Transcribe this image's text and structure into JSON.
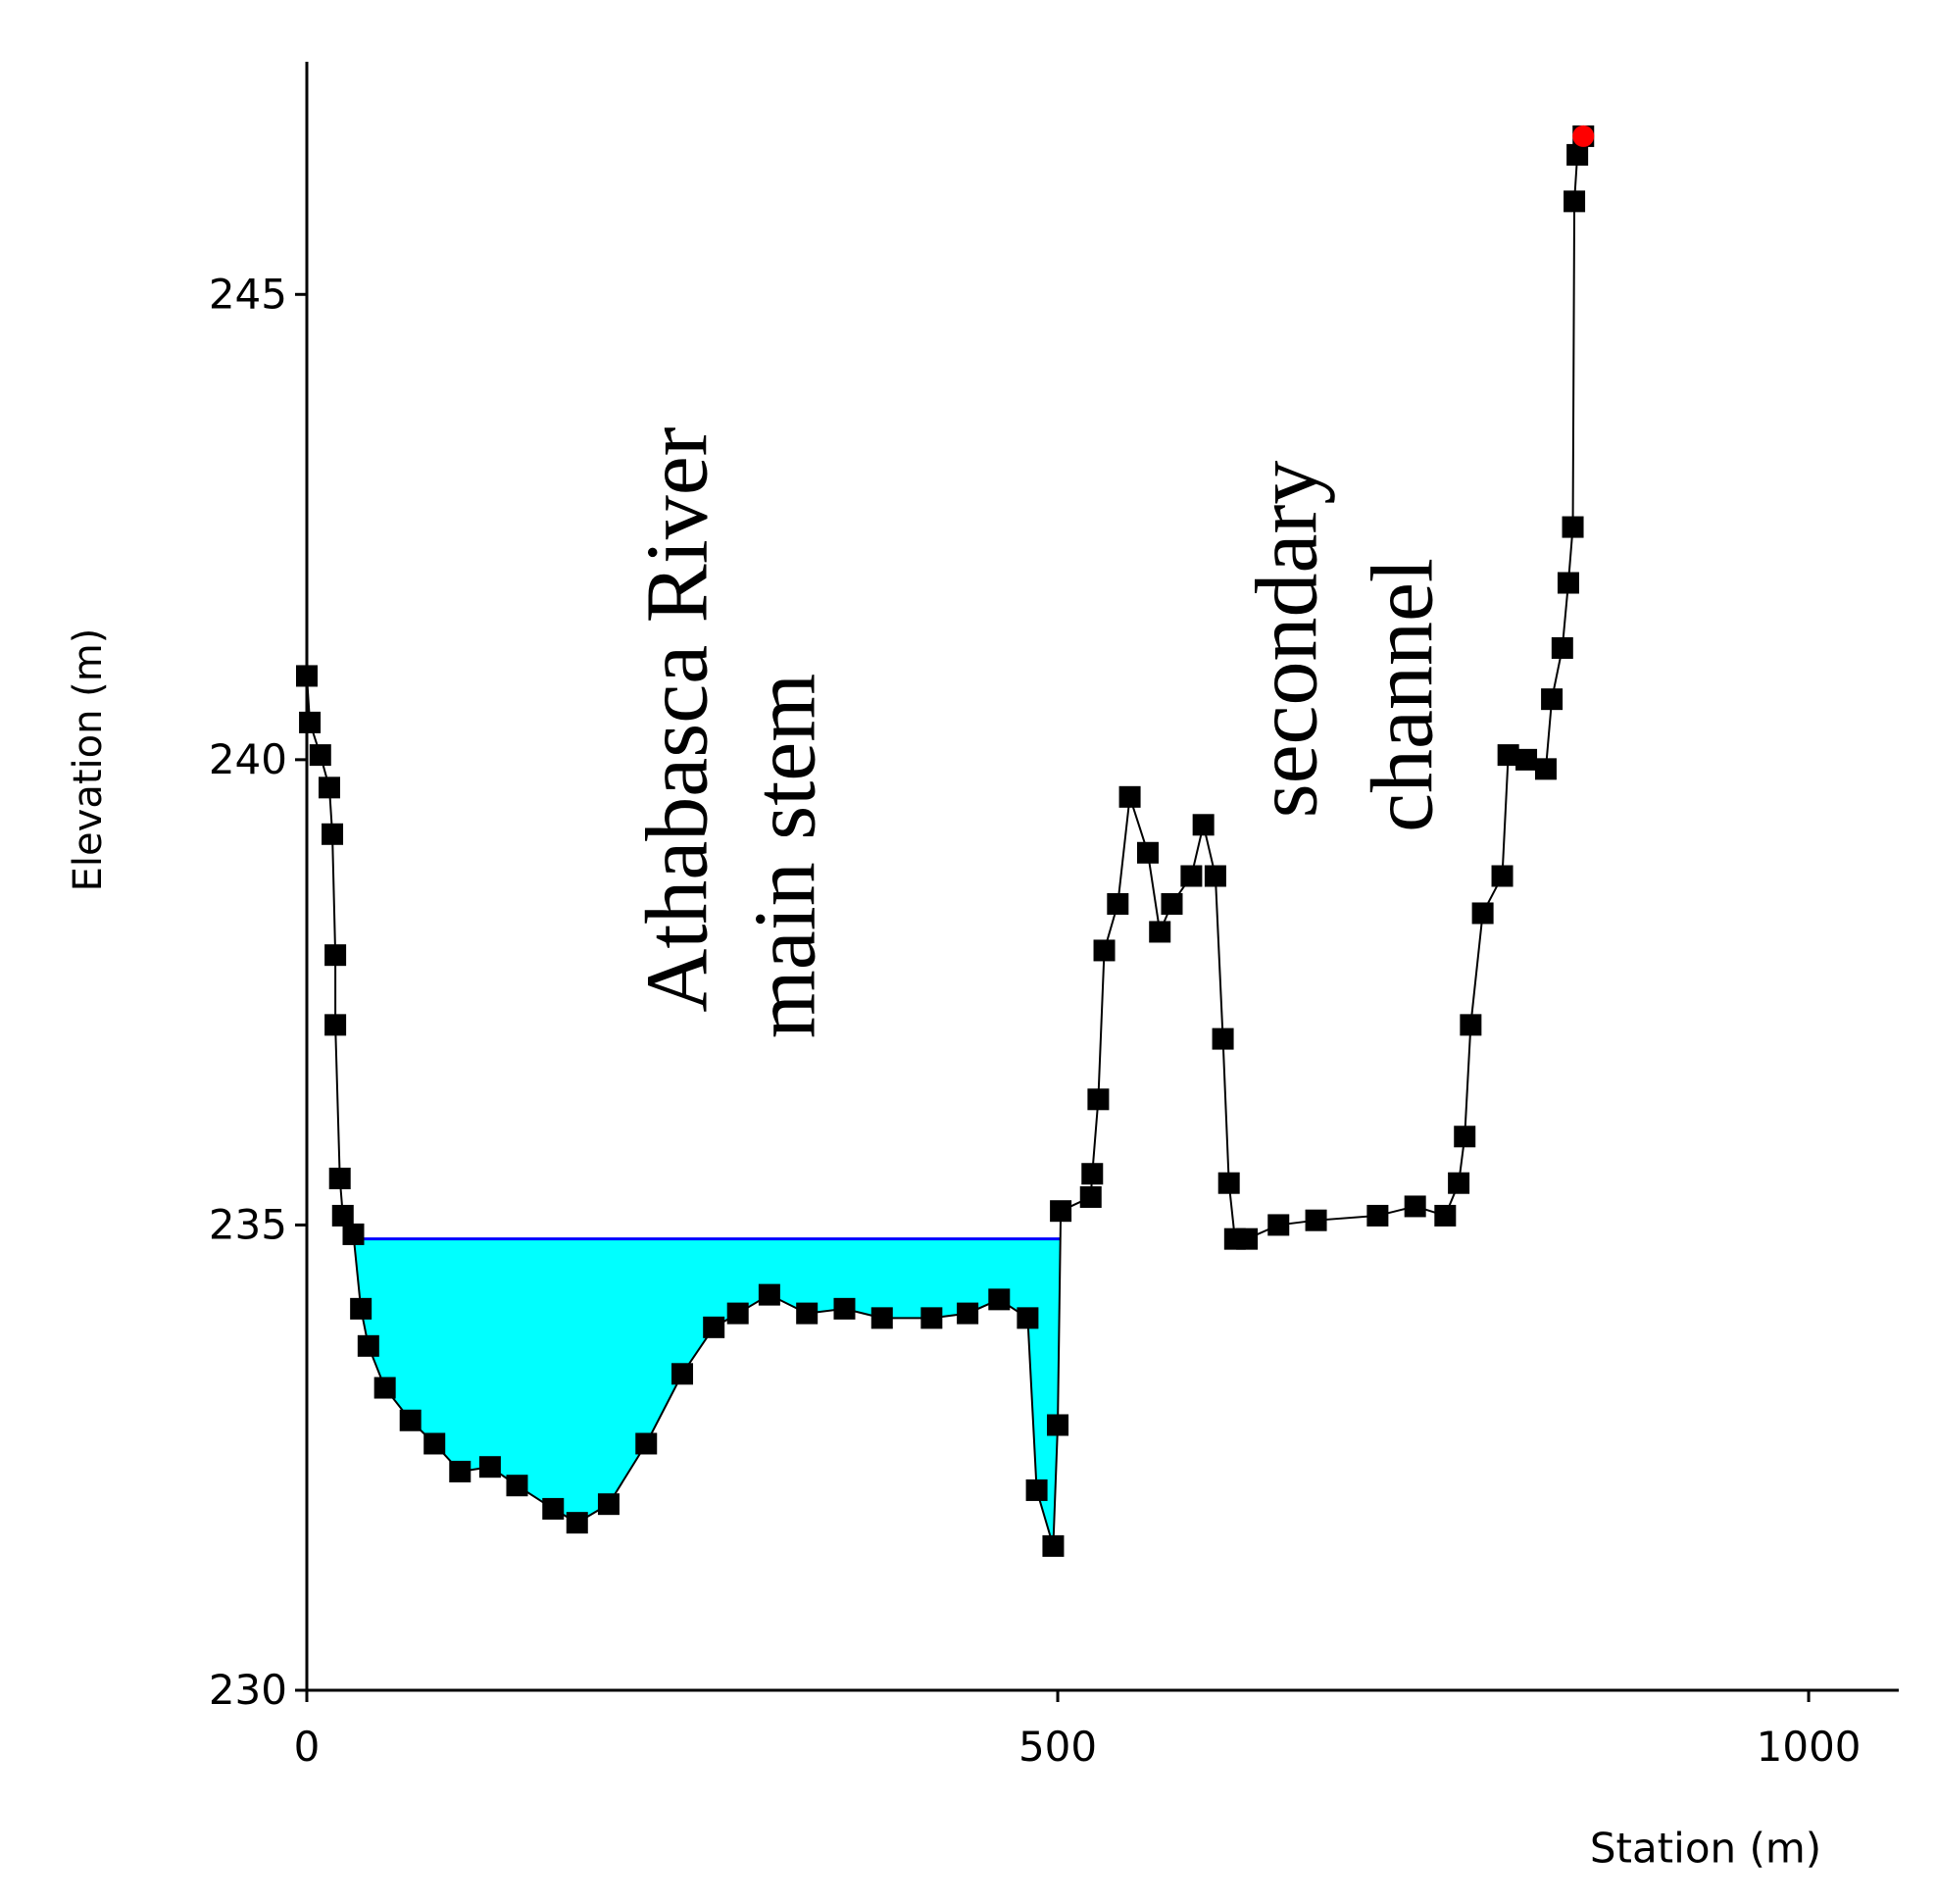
{
  "chart_data": {
    "type": "line",
    "xlabel": "Station (m)",
    "ylabel": "Elevation (m)",
    "xlim": [
      0,
      1060
    ],
    "ylim": [
      230,
      247.5
    ],
    "xticks": [
      0,
      500,
      1000
    ],
    "yticks": [
      230,
      235,
      240,
      245
    ],
    "annotations": [
      "Athabasca  River",
      "main stem",
      "secondary",
      "channel"
    ],
    "series": [
      {
        "color": "#000000",
        "marker": "square",
        "x": [
          0,
          2,
          9,
          15,
          17,
          19,
          19,
          22,
          24,
          31,
          36,
          41,
          52,
          69,
          85,
          102,
          122,
          140,
          164,
          180,
          201,
          226,
          250,
          271,
          287,
          308,
          333,
          358,
          383,
          416,
          440,
          461,
          480,
          486,
          497,
          500,
          502,
          522,
          523,
          527,
          531,
          540,
          548,
          560,
          568,
          576,
          589,
          597,
          605,
          610,
          614,
          618,
          626,
          647,
          672,
          713,
          738,
          758,
          767,
          771,
          775,
          783,
          796,
          800,
          812,
          825,
          829,
          836,
          840,
          843,
          844,
          846,
          850
        ],
        "values": [
          240.9,
          240.4,
          240.05,
          239.7,
          239.2,
          237.9,
          237.15,
          235.5,
          235.1,
          234.9,
          234.1,
          233.7,
          233.25,
          232.9,
          232.65,
          232.35,
          232.4,
          232.2,
          231.95,
          231.8,
          232.0,
          232.65,
          233.4,
          233.9,
          234.05,
          234.25,
          234.05,
          234.1,
          234.0,
          234.0,
          234.05,
          234.2,
          234.0,
          232.15,
          231.55,
          232.85,
          235.15,
          235.3,
          235.55,
          236.35,
          237.95,
          238.45,
          239.6,
          239.0,
          238.15,
          238.45,
          238.75,
          239.3,
          238.75,
          237.0,
          235.45,
          234.85,
          234.85,
          235.0,
          235.05,
          235.1,
          235.2,
          235.1,
          235.45,
          235.95,
          237.15,
          238.35,
          238.75,
          240.05,
          240.0,
          239.9,
          240.65,
          241.2,
          241.9,
          242.5,
          246.0,
          246.5,
          246.7
        ]
      },
      {
        "color": "#0000ff",
        "fill": "#00ffff",
        "x": [
          24,
          502
        ],
        "values": [
          234.85,
          234.85
        ]
      },
      {
        "color": "#ff0000",
        "marker": "circle",
        "x": [
          850
        ],
        "values": [
          246.7
        ]
      }
    ]
  }
}
